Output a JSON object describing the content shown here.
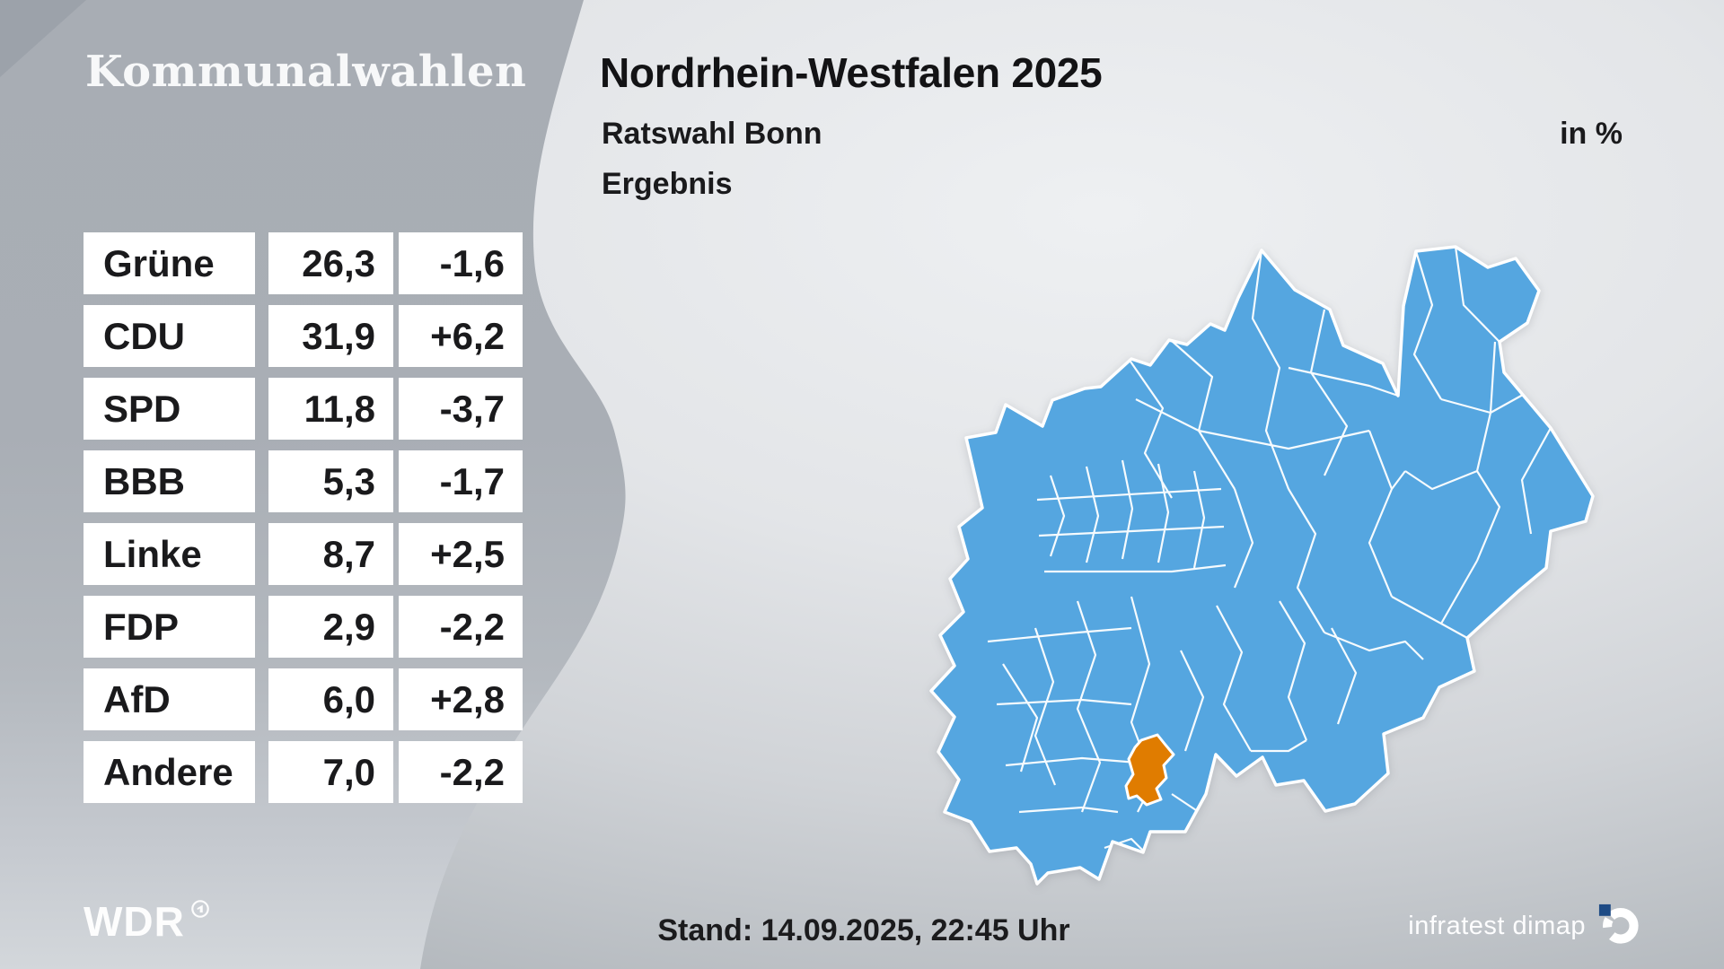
{
  "brand": {
    "title": "Kommunalwahlen",
    "broadcaster_logo": "WDR"
  },
  "header": {
    "title": "Nordrhein-Westfalen 2025",
    "subtitle": "Ratswahl Bonn",
    "status_line": "Ergebnis",
    "unit_label": "in %"
  },
  "footer": {
    "timestamp": "Stand: 14.09.2025, 22:45 Uhr",
    "source": "infratest dimap"
  },
  "chart_data": {
    "type": "table",
    "title": "Kommunalwahlen — Nordrhein-Westfalen 2025 — Ratswahl Bonn — Ergebnis",
    "unit": "in %",
    "parties": [
      "Grüne",
      "CDU",
      "SPD",
      "BBB",
      "Linke",
      "FDP",
      "AfD",
      "Andere"
    ],
    "values_percent": [
      26.3,
      31.9,
      11.8,
      5.3,
      8.7,
      2.9,
      6.0,
      7.0
    ],
    "change_points": [
      -1.6,
      6.2,
      -3.7,
      -1.7,
      2.5,
      -2.2,
      2.8,
      -2.2
    ],
    "rows": [
      {
        "party": "Grüne",
        "value": "26,3",
        "change": "-1,6"
      },
      {
        "party": "CDU",
        "value": "31,9",
        "change": "+6,2"
      },
      {
        "party": "SPD",
        "value": "11,8",
        "change": "-3,7"
      },
      {
        "party": "BBB",
        "value": "5,3",
        "change": "-1,7"
      },
      {
        "party": "Linke",
        "value": "8,7",
        "change": "+2,5"
      },
      {
        "party": "FDP",
        "value": "2,9",
        "change": "-2,2"
      },
      {
        "party": "AfD",
        "value": "6,0",
        "change": "+2,8"
      },
      {
        "party": "Andere",
        "value": "7,0",
        "change": "-2,2"
      }
    ]
  },
  "map": {
    "region": "Nordrhein-Westfalen",
    "highlighted_area": "Bonn",
    "fill_color": "#55a6e0",
    "highlight_color": "#e07c00",
    "border_color": "#ffffff"
  },
  "colors": {
    "panel_gray": "#a9aeb4",
    "text_dark": "#1a1a1c",
    "box_white": "#ffffff",
    "infratest_blue": "#1e4b85"
  }
}
